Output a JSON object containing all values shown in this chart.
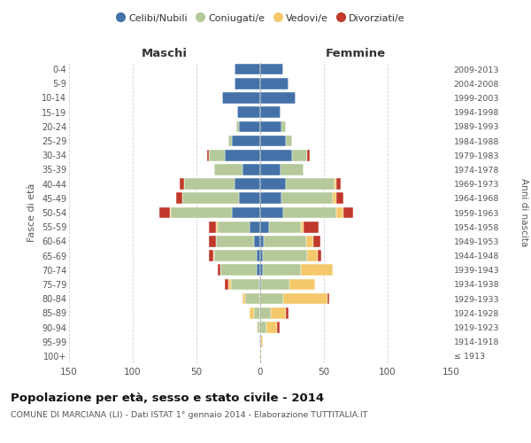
{
  "age_groups": [
    "100+",
    "95-99",
    "90-94",
    "85-89",
    "80-84",
    "75-79",
    "70-74",
    "65-69",
    "60-64",
    "55-59",
    "50-54",
    "45-49",
    "40-44",
    "35-39",
    "30-34",
    "25-29",
    "20-24",
    "15-19",
    "10-14",
    "5-9",
    "0-4"
  ],
  "birth_years": [
    "≤ 1913",
    "1914-1918",
    "1919-1923",
    "1924-1928",
    "1929-1933",
    "1934-1938",
    "1939-1943",
    "1944-1948",
    "1949-1953",
    "1954-1958",
    "1959-1963",
    "1964-1968",
    "1969-1973",
    "1974-1978",
    "1979-1983",
    "1984-1988",
    "1989-1993",
    "1994-1998",
    "1999-2003",
    "2004-2008",
    "2009-2013"
  ],
  "males": {
    "celibi": [
      0,
      1,
      0,
      0,
      0,
      1,
      3,
      3,
      5,
      8,
      22,
      17,
      20,
      14,
      28,
      22,
      17,
      18,
      30,
      20,
      20
    ],
    "coniugati": [
      0,
      0,
      2,
      5,
      12,
      22,
      28,
      33,
      30,
      25,
      48,
      44,
      40,
      22,
      12,
      3,
      2,
      0,
      0,
      0,
      0
    ],
    "vedovi": [
      0,
      0,
      1,
      3,
      2,
      2,
      0,
      1,
      0,
      2,
      1,
      0,
      0,
      0,
      0,
      0,
      0,
      0,
      0,
      0,
      0
    ],
    "divorziati": [
      0,
      0,
      0,
      0,
      0,
      3,
      2,
      3,
      5,
      5,
      8,
      5,
      3,
      0,
      2,
      0,
      0,
      0,
      0,
      0,
      0
    ]
  },
  "females": {
    "nubili": [
      0,
      0,
      0,
      0,
      0,
      1,
      2,
      2,
      3,
      7,
      18,
      17,
      20,
      16,
      25,
      20,
      17,
      16,
      28,
      22,
      18
    ],
    "coniugate": [
      0,
      1,
      5,
      8,
      18,
      22,
      30,
      35,
      33,
      25,
      42,
      40,
      38,
      18,
      12,
      5,
      3,
      0,
      0,
      0,
      0
    ],
    "vedove": [
      1,
      1,
      8,
      12,
      35,
      20,
      25,
      8,
      6,
      2,
      5,
      3,
      2,
      0,
      0,
      0,
      0,
      0,
      0,
      0,
      0
    ],
    "divorziate": [
      0,
      0,
      2,
      2,
      1,
      0,
      0,
      3,
      5,
      12,
      8,
      5,
      3,
      0,
      2,
      0,
      0,
      0,
      0,
      0,
      0
    ]
  },
  "colors": {
    "celibi": "#4472a8",
    "coniugati": "#b5c99a",
    "vedovi": "#f5c96b",
    "divorziati": "#c0392b"
  },
  "xlim": 150,
  "title": "Popolazione per età, sesso e stato civile - 2014",
  "subtitle": "COMUNE DI MARCIANA (LI) - Dati ISTAT 1° gennaio 2014 - Elaborazione TUTTITALIA.IT",
  "ylabel_left": "Fasce di età",
  "ylabel_right": "Anni di nascita",
  "xlabel_maschi": "Maschi",
  "xlabel_femmine": "Femmine",
  "legend_labels": [
    "Celibi/Nubili",
    "Coniugati/e",
    "Vedovi/e",
    "Divorziati/e"
  ],
  "bg_color": "#ffffff",
  "grid_color": "#cccccc"
}
